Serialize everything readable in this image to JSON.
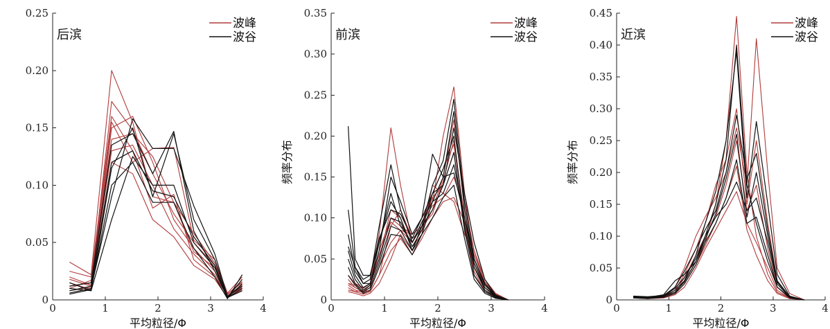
{
  "colors": {
    "peak": "#b03a3a",
    "trough": "#111111"
  },
  "chart_data": [
    {
      "type": "line",
      "panel_label": "后滨",
      "xlabel": "平均粒径/Φ",
      "ylabel": "",
      "xlim": [
        0,
        4
      ],
      "ylim": [
        0,
        0.25
      ],
      "xticks": [
        "0",
        "1",
        "2",
        "3",
        "4"
      ],
      "yticks": [
        "0",
        "0.05",
        "0.10",
        "0.15",
        "0.20",
        "0.25"
      ],
      "legend": [
        "波峰",
        "波谷"
      ],
      "legend_position": "top-right",
      "x": [
        0.32,
        0.73,
        1.12,
        1.52,
        1.9,
        2.3,
        2.68,
        3.08,
        3.32,
        3.6
      ],
      "series": [
        {
          "group": "peak",
          "values": [
            0.033,
            0.022,
            0.2,
            0.155,
            0.09,
            0.085,
            0.042,
            0.028,
            0.004,
            0.012
          ]
        },
        {
          "group": "peak",
          "values": [
            0.018,
            0.012,
            0.173,
            0.148,
            0.11,
            0.075,
            0.05,
            0.03,
            0.005,
            0.016
          ]
        },
        {
          "group": "peak",
          "values": [
            0.025,
            0.02,
            0.16,
            0.13,
            0.08,
            0.092,
            0.035,
            0.02,
            0.004,
            0.01
          ]
        },
        {
          "group": "peak",
          "values": [
            0.012,
            0.015,
            0.155,
            0.12,
            0.132,
            0.133,
            0.052,
            0.035,
            0.006,
            0.02
          ]
        },
        {
          "group": "peak",
          "values": [
            0.015,
            0.009,
            0.15,
            0.16,
            0.12,
            0.07,
            0.045,
            0.025,
            0.005,
            0.015
          ]
        },
        {
          "group": "peak",
          "values": [
            0.01,
            0.017,
            0.14,
            0.145,
            0.125,
            0.085,
            0.058,
            0.032,
            0.004,
            0.013
          ]
        },
        {
          "group": "peak",
          "values": [
            0.02,
            0.013,
            0.13,
            0.135,
            0.1,
            0.062,
            0.04,
            0.022,
            0.003,
            0.011
          ]
        },
        {
          "group": "peak",
          "values": [
            0.008,
            0.011,
            0.12,
            0.11,
            0.07,
            0.055,
            0.03,
            0.018,
            0.002,
            0.009
          ]
        },
        {
          "group": "trough",
          "values": [
            0.01,
            0.008,
            0.115,
            0.15,
            0.09,
            0.145,
            0.07,
            0.035,
            0.002,
            0.01
          ]
        },
        {
          "group": "trough",
          "values": [
            0.006,
            0.01,
            0.09,
            0.158,
            0.132,
            0.132,
            0.082,
            0.04,
            0.003,
            0.012
          ]
        },
        {
          "group": "trough",
          "values": [
            0.012,
            0.015,
            0.135,
            0.145,
            0.11,
            0.147,
            0.06,
            0.025,
            0.002,
            0.018
          ]
        },
        {
          "group": "trough",
          "values": [
            0.008,
            0.012,
            0.12,
            0.13,
            0.095,
            0.09,
            0.055,
            0.03,
            0.002,
            0.014
          ]
        },
        {
          "group": "trough",
          "values": [
            0.015,
            0.008,
            0.07,
            0.125,
            0.1,
            0.1,
            0.05,
            0.028,
            0.002,
            0.008
          ]
        },
        {
          "group": "trough",
          "values": [
            0.005,
            0.009,
            0.1,
            0.12,
            0.085,
            0.085,
            0.045,
            0.02,
            0.001,
            0.022
          ]
        }
      ]
    },
    {
      "type": "line",
      "panel_label": "前滨",
      "xlabel": "平均粒径/Φ",
      "ylabel": "频率分布",
      "xlim": [
        0,
        4
      ],
      "ylim": [
        0,
        0.35
      ],
      "xticks": [
        "0",
        "1",
        "2",
        "3",
        "4"
      ],
      "yticks": [
        "0",
        "0.05",
        "0.10",
        "0.15",
        "0.20",
        "0.25",
        "0.30",
        "0.35"
      ],
      "legend": [
        "波峰",
        "波谷"
      ],
      "legend_position": "top-right",
      "x": [
        0.32,
        0.45,
        0.6,
        0.73,
        0.9,
        1.12,
        1.3,
        1.52,
        1.7,
        1.9,
        2.1,
        2.3,
        2.5,
        2.68,
        2.88,
        3.08,
        3.32
      ],
      "series": [
        {
          "group": "peak",
          "values": [
            0.03,
            0.02,
            0.015,
            0.02,
            0.08,
            0.21,
            0.14,
            0.07,
            0.09,
            0.13,
            0.16,
            0.19,
            0.1,
            0.04,
            0.015,
            0.005,
            0
          ]
        },
        {
          "group": "peak",
          "values": [
            0.02,
            0.015,
            0.01,
            0.015,
            0.06,
            0.1,
            0.09,
            0.08,
            0.1,
            0.12,
            0.2,
            0.26,
            0.13,
            0.05,
            0.02,
            0.005,
            0
          ]
        },
        {
          "group": "peak",
          "values": [
            0.015,
            0.01,
            0.012,
            0.01,
            0.03,
            0.09,
            0.11,
            0.075,
            0.085,
            0.11,
            0.15,
            0.22,
            0.12,
            0.06,
            0.025,
            0.008,
            0
          ]
        },
        {
          "group": "peak",
          "values": [
            0.01,
            0.008,
            0.005,
            0.008,
            0.02,
            0.05,
            0.08,
            0.06,
            0.09,
            0.125,
            0.14,
            0.18,
            0.09,
            0.035,
            0.01,
            0.004,
            0
          ]
        },
        {
          "group": "peak",
          "values": [
            0.025,
            0.015,
            0.01,
            0.018,
            0.05,
            0.11,
            0.1,
            0.065,
            0.08,
            0.14,
            0.13,
            0.12,
            0.08,
            0.06,
            0.02,
            0.006,
            0
          ]
        },
        {
          "group": "peak",
          "values": [
            0.018,
            0.012,
            0.009,
            0.012,
            0.04,
            0.07,
            0.085,
            0.07,
            0.095,
            0.115,
            0.125,
            0.15,
            0.11,
            0.045,
            0.018,
            0.005,
            0
          ]
        },
        {
          "group": "peak",
          "values": [
            0.012,
            0.01,
            0.007,
            0.01,
            0.03,
            0.06,
            0.075,
            0.055,
            0.075,
            0.1,
            0.12,
            0.125,
            0.095,
            0.03,
            0.012,
            0.003,
            0
          ]
        },
        {
          "group": "peak",
          "values": [
            0.02,
            0.018,
            0.014,
            0.02,
            0.055,
            0.095,
            0.085,
            0.08,
            0.09,
            0.105,
            0.145,
            0.195,
            0.1,
            0.055,
            0.022,
            0.007,
            0
          ]
        },
        {
          "group": "trough",
          "values": [
            0.212,
            0.05,
            0.03,
            0.03,
            0.07,
            0.12,
            0.1,
            0.06,
            0.08,
            0.12,
            0.15,
            0.155,
            0.1,
            0.04,
            0.015,
            0.005,
            0
          ]
        },
        {
          "group": "trough",
          "values": [
            0.11,
            0.04,
            0.02,
            0.025,
            0.09,
            0.165,
            0.11,
            0.07,
            0.09,
            0.14,
            0.17,
            0.245,
            0.12,
            0.05,
            0.02,
            0.006,
            0
          ]
        },
        {
          "group": "trough",
          "values": [
            0.06,
            0.03,
            0.015,
            0.02,
            0.06,
            0.15,
            0.12,
            0.08,
            0.1,
            0.178,
            0.15,
            0.23,
            0.11,
            0.045,
            0.015,
            0.004,
            0
          ]
        },
        {
          "group": "trough",
          "values": [
            0.08,
            0.035,
            0.02,
            0.02,
            0.05,
            0.1,
            0.095,
            0.065,
            0.085,
            0.13,
            0.16,
            0.2,
            0.09,
            0.04,
            0.012,
            0.004,
            0
          ]
        },
        {
          "group": "trough",
          "values": [
            0.04,
            0.02,
            0.01,
            0.015,
            0.045,
            0.09,
            0.085,
            0.06,
            0.09,
            0.11,
            0.14,
            0.18,
            0.085,
            0.03,
            0.01,
            0.003,
            0
          ]
        },
        {
          "group": "trough",
          "values": [
            0.05,
            0.025,
            0.012,
            0.018,
            0.07,
            0.13,
            0.09,
            0.07,
            0.095,
            0.12,
            0.13,
            0.165,
            0.1,
            0.05,
            0.018,
            0.005,
            0
          ]
        },
        {
          "group": "trough",
          "values": [
            0.03,
            0.018,
            0.008,
            0.012,
            0.04,
            0.08,
            0.078,
            0.055,
            0.08,
            0.1,
            0.125,
            0.14,
            0.075,
            0.025,
            0.008,
            0.002,
            0
          ]
        },
        {
          "group": "trough",
          "values": [
            0.065,
            0.04,
            0.025,
            0.03,
            0.075,
            0.11,
            0.105,
            0.075,
            0.1,
            0.13,
            0.14,
            0.21,
            0.13,
            0.07,
            0.025,
            0.006,
            0
          ]
        }
      ]
    },
    {
      "type": "line",
      "panel_label": "近滨",
      "xlabel": "平均粒径/Φ",
      "ylabel": "频率分布",
      "xlim": [
        0,
        4
      ],
      "ylim": [
        0,
        0.45
      ],
      "xticks": [
        "0",
        "1",
        "2",
        "3",
        "4"
      ],
      "yticks": [
        "0",
        "0.05",
        "0.10",
        "0.15",
        "0.20",
        "0.25",
        "0.30",
        "0.35",
        "0.40",
        "0.45"
      ],
      "legend": [
        "波峰",
        "波谷"
      ],
      "legend_position": "top-right",
      "x": [
        0.32,
        0.6,
        0.9,
        1.12,
        1.3,
        1.52,
        1.7,
        1.9,
        2.1,
        2.3,
        2.5,
        2.68,
        2.9,
        3.08,
        3.32,
        3.6
      ],
      "series": [
        {
          "group": "peak",
          "values": [
            0.005,
            0.003,
            0.005,
            0.01,
            0.03,
            0.06,
            0.09,
            0.15,
            0.25,
            0.445,
            0.2,
            0.1,
            0.04,
            0.012,
            0.003,
            0
          ]
        },
        {
          "group": "peak",
          "values": [
            0.004,
            0.003,
            0.004,
            0.02,
            0.05,
            0.1,
            0.13,
            0.16,
            0.2,
            0.27,
            0.18,
            0.41,
            0.2,
            0.05,
            0.01,
            0
          ]
        },
        {
          "group": "peak",
          "values": [
            0.006,
            0.004,
            0.006,
            0.015,
            0.04,
            0.08,
            0.12,
            0.18,
            0.22,
            0.3,
            0.15,
            0.25,
            0.12,
            0.03,
            0.005,
            0
          ]
        },
        {
          "group": "peak",
          "values": [
            0.003,
            0.002,
            0.003,
            0.008,
            0.02,
            0.05,
            0.08,
            0.11,
            0.14,
            0.17,
            0.12,
            0.09,
            0.05,
            0.015,
            0.003,
            0
          ]
        },
        {
          "group": "peak",
          "values": [
            0.005,
            0.004,
            0.005,
            0.012,
            0.035,
            0.07,
            0.1,
            0.13,
            0.18,
            0.25,
            0.14,
            0.18,
            0.08,
            0.02,
            0.004,
            0
          ]
        },
        {
          "group": "peak",
          "values": [
            0.004,
            0.003,
            0.004,
            0.01,
            0.025,
            0.055,
            0.085,
            0.12,
            0.16,
            0.21,
            0.11,
            0.07,
            0.03,
            0.01,
            0.002,
            0
          ]
        },
        {
          "group": "trough",
          "values": [
            0.005,
            0.004,
            0.008,
            0.03,
            0.04,
            0.06,
            0.1,
            0.15,
            0.22,
            0.4,
            0.18,
            0.12,
            0.06,
            0.02,
            0.004,
            0
          ]
        },
        {
          "group": "trough",
          "values": [
            0.004,
            0.003,
            0.005,
            0.015,
            0.03,
            0.07,
            0.12,
            0.17,
            0.25,
            0.39,
            0.16,
            0.28,
            0.15,
            0.04,
            0.006,
            0
          ]
        },
        {
          "group": "trough",
          "values": [
            0.006,
            0.005,
            0.007,
            0.02,
            0.045,
            0.08,
            0.11,
            0.14,
            0.2,
            0.29,
            0.19,
            0.23,
            0.11,
            0.03,
            0.005,
            0
          ]
        },
        {
          "group": "trough",
          "values": [
            0.003,
            0.002,
            0.004,
            0.01,
            0.025,
            0.055,
            0.09,
            0.12,
            0.16,
            0.22,
            0.12,
            0.13,
            0.07,
            0.02,
            0.003,
            0
          ]
        },
        {
          "group": "trough",
          "values": [
            0.004,
            0.003,
            0.006,
            0.018,
            0.035,
            0.065,
            0.1,
            0.13,
            0.15,
            0.185,
            0.14,
            0.16,
            0.09,
            0.025,
            0.004,
            0
          ]
        },
        {
          "group": "trough",
          "values": [
            0.005,
            0.004,
            0.006,
            0.012,
            0.028,
            0.06,
            0.095,
            0.135,
            0.19,
            0.26,
            0.13,
            0.2,
            0.1,
            0.028,
            0.005,
            0
          ]
        }
      ]
    }
  ]
}
